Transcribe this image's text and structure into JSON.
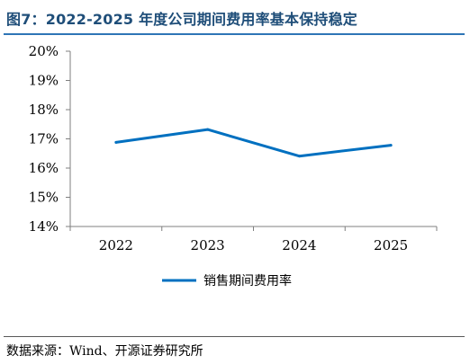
{
  "figure": {
    "title": "图7：2022-2025 年度公司期间费用率基本保持稳定",
    "source": "数据来源：Wind、开源证券研究所"
  },
  "chart_data": {
    "type": "line",
    "title": "",
    "xlabel": "",
    "ylabel": "",
    "categories": [
      "2022",
      "2023",
      "2024",
      "2025"
    ],
    "series": [
      {
        "name": "销售期间费用率",
        "values": [
          16.88,
          17.32,
          16.41,
          16.78
        ],
        "color": "#0070c0"
      }
    ],
    "ylim": [
      14,
      20
    ],
    "yticks": [
      "14%",
      "15%",
      "16%",
      "17%",
      "18%",
      "19%",
      "20%"
    ],
    "grid": false,
    "legend": "bottom-center"
  }
}
